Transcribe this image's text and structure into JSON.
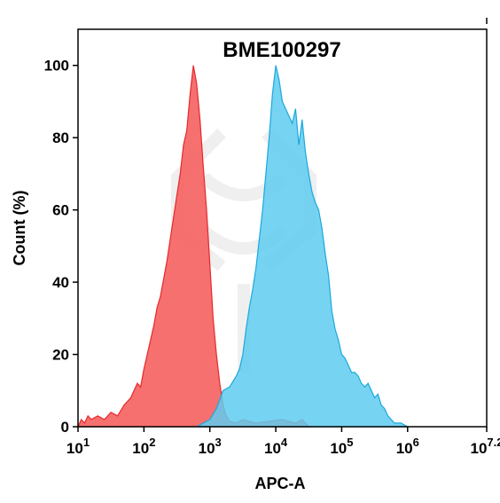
{
  "chart_data": {
    "type": "area",
    "title": "BME100297",
    "xlabel": "APC-A",
    "ylabel": "Count (%)",
    "x_scale": "log",
    "xlim": [
      1,
      7.2
    ],
    "ylim": [
      0,
      110
    ],
    "y_ticks": [
      0,
      20,
      40,
      60,
      80,
      100
    ],
    "x_ticks": [
      {
        "base": "10",
        "exp": "1"
      },
      {
        "base": "10",
        "exp": "2"
      },
      {
        "base": "10",
        "exp": "3"
      },
      {
        "base": "10",
        "exp": "4"
      },
      {
        "base": "10",
        "exp": "5"
      },
      {
        "base": "10",
        "exp": "6"
      },
      {
        "base": "10",
        "exp": "7.2"
      }
    ],
    "grid": false,
    "colors": {
      "red_fill": "#f4605f",
      "red_line": "#e8282b",
      "blue_fill": "#5fcbf0",
      "blue_line": "#1aa9dd",
      "overlap": "#8a5a6c"
    },
    "series": [
      {
        "color": "red",
        "x": [
          1.0,
          1.05,
          1.1,
          1.15,
          1.2,
          1.3,
          1.4,
          1.5,
          1.6,
          1.7,
          1.8,
          1.85,
          1.9,
          1.95,
          2.0,
          2.05,
          2.1,
          2.15,
          2.2,
          2.25,
          2.3,
          2.35,
          2.4,
          2.45,
          2.5,
          2.55,
          2.6,
          2.65,
          2.7,
          2.75,
          2.8,
          2.85,
          2.9,
          2.95,
          3.0,
          3.05,
          3.1,
          3.15,
          3.2,
          3.25,
          3.3,
          3.4,
          3.5,
          3.7,
          3.9,
          4.1,
          4.3,
          4.4,
          4.5
        ],
        "y": [
          0,
          2,
          1,
          3,
          2,
          3,
          2,
          4,
          3,
          6,
          8,
          10,
          12,
          11,
          16,
          20,
          24,
          28,
          33,
          36,
          41,
          46,
          52,
          58,
          64,
          70,
          78,
          82,
          92,
          100,
          95,
          85,
          72,
          60,
          45,
          30,
          20,
          12,
          6,
          3,
          1.5,
          1,
          2,
          1,
          1.5,
          2,
          1,
          2,
          0
        ]
      },
      {
        "color": "blue",
        "x": [
          2.8,
          2.9,
          3.0,
          3.1,
          3.2,
          3.3,
          3.4,
          3.45,
          3.5,
          3.55,
          3.6,
          3.65,
          3.7,
          3.75,
          3.8,
          3.85,
          3.9,
          3.95,
          4.0,
          4.05,
          4.1,
          4.15,
          4.2,
          4.25,
          4.3,
          4.35,
          4.4,
          4.45,
          4.5,
          4.55,
          4.6,
          4.65,
          4.7,
          4.75,
          4.8,
          4.85,
          4.9,
          4.95,
          5.0,
          5.05,
          5.1,
          5.15,
          5.2,
          5.25,
          5.3,
          5.35,
          5.4,
          5.45,
          5.5,
          5.55,
          5.6,
          5.65,
          5.7,
          5.8,
          5.9,
          6.0
        ],
        "y": [
          0,
          1,
          2,
          5,
          10,
          11,
          14,
          16,
          20,
          27,
          33,
          38,
          44,
          52,
          60,
          70,
          80,
          92,
          100,
          96,
          90,
          88,
          86,
          84,
          88,
          78,
          85,
          76,
          70,
          65,
          62,
          60,
          55,
          48,
          42,
          32,
          27,
          24,
          20,
          19,
          17,
          15,
          15,
          14,
          12,
          11,
          12,
          10,
          8,
          9,
          6,
          5,
          3,
          1,
          1,
          0
        ]
      }
    ]
  }
}
